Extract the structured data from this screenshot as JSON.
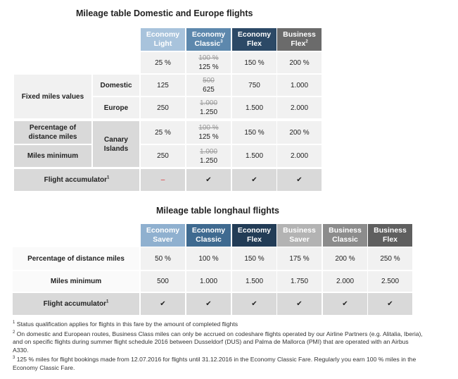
{
  "table1": {
    "title": "Mileage table Domestic and Europe flights",
    "headers": [
      {
        "label": "Economy Light"
      },
      {
        "label": "Economy Classic",
        "note": "3"
      },
      {
        "label": "Economy Flex"
      },
      {
        "label": "Business Flex",
        "note": "2"
      }
    ],
    "general": [
      "25 %",
      {
        "old": "100 %",
        "new": "125 %"
      },
      "150 %",
      "200 %"
    ],
    "fixed_miles": {
      "label": "Fixed miles values",
      "domestic": {
        "label": "Domestic",
        "cells": [
          "125",
          {
            "old": "500",
            "new": "625"
          },
          "750",
          "1.000"
        ]
      },
      "europe": {
        "label": "Europe",
        "cells": [
          "250",
          {
            "old": "1.000",
            "new": "1.250"
          },
          "1.500",
          "2.000"
        ]
      }
    },
    "canary": {
      "label": "Canary Islands",
      "percentage": {
        "label": "Percentage of distance miles",
        "cells": [
          "25 %",
          {
            "old": "100 %",
            "new": "125 %"
          },
          "150 %",
          "200 %"
        ]
      },
      "minimum": {
        "label": "Miles minimum",
        "cells": [
          "250",
          {
            "old": "1.000",
            "new": "1.250"
          },
          "1.500",
          "2.000"
        ]
      }
    },
    "accumulator": {
      "label": "Flight accumulator",
      "note": "1",
      "cells": [
        "–",
        "✔",
        "✔",
        "✔"
      ]
    }
  },
  "table2": {
    "title": "Mileage table longhaul flights",
    "headers": [
      {
        "label": "Economy Saver"
      },
      {
        "label": "Economy Classic"
      },
      {
        "label": "Economy Flex"
      },
      {
        "label": "Business Saver"
      },
      {
        "label": "Business Classic"
      },
      {
        "label": "Business Flex"
      }
    ],
    "rows": [
      {
        "label": "Percentage of distance miles",
        "cells": [
          "50 %",
          "100 %",
          "150 %",
          "175 %",
          "200 %",
          "250 %"
        ]
      },
      {
        "label": "Miles minimum",
        "cells": [
          "500",
          "1.000",
          "1.500",
          "1.750",
          "2.000",
          "2.500"
        ]
      },
      {
        "label": "Flight accumulator",
        "note": "1",
        "cells": [
          "✔",
          "✔",
          "✔",
          "✔",
          "✔",
          "✔"
        ]
      }
    ]
  },
  "footnotes": [
    {
      "mark": "1",
      "text": "Status qualification applies for flights in this fare by the amount of completed flights"
    },
    {
      "mark": "2",
      "text": "On domestic and European routes, Business Class miles can only be accrued on codeshare flights operated by our Airline Partners (e.g. Alitalia, Iberia), and on specific flights during summer flight schedule 2016 between Dusseldorf (DUS) and Palma de Mallorca (PMI) that are operated with an Airbus A330."
    },
    {
      "mark": "3",
      "text": "125 % miles for flight bookings made from 12.07.2016 for flights until 31.12.2016 in the Economy Classic Fare. Regularly you earn 100 % miles in the Economy Classic Fare."
    }
  ]
}
